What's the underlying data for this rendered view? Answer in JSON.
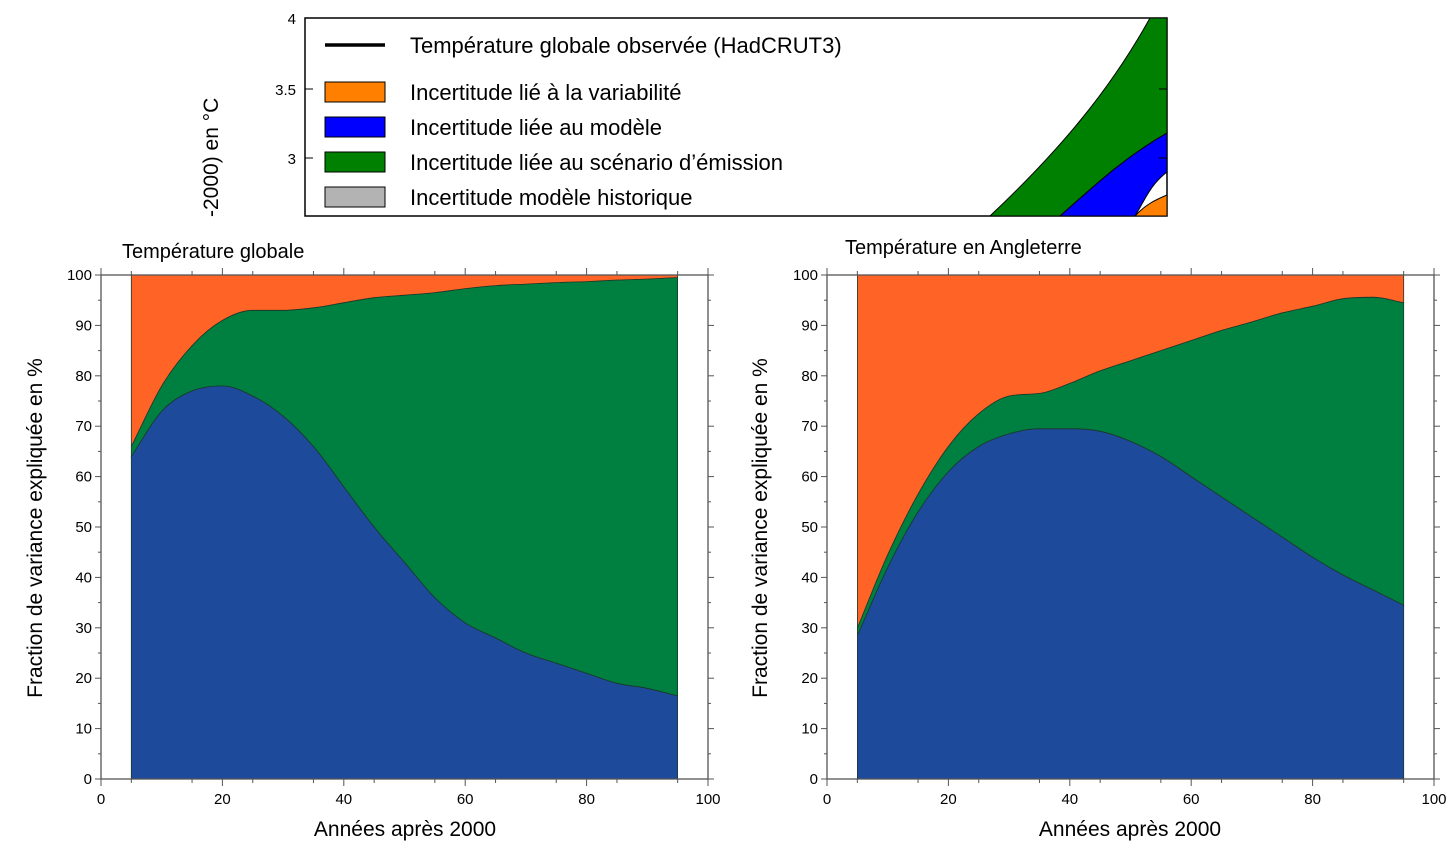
{
  "colors": {
    "variability": "#ff6325",
    "model": "#1d4a9a",
    "scenario": "#008040",
    "legend_variability": "#ff8000",
    "legend_model": "#0000ff",
    "legend_scenario": "#008000",
    "legend_historic": "#b3b3b3"
  },
  "top_panel": {
    "ylabel_fragment": "-2000) en °C",
    "yticks": [
      "3",
      "3.5",
      "4"
    ],
    "legend": [
      {
        "key": "observed",
        "label": "Température globale observée (HadCRUT3)"
      },
      {
        "key": "variability",
        "label": "Incertitude lié à la variabilité"
      },
      {
        "key": "model",
        "label": "Incertitude liée au modèle"
      },
      {
        "key": "scenario",
        "label": "Incertitude liée au scénario d’émission"
      },
      {
        "key": "historic",
        "label": "Incertitude modèle historique"
      }
    ]
  },
  "chart_data": [
    {
      "type": "area",
      "title": "Température globale",
      "xlabel": "Années après 2000",
      "ylabel": "Fraction de variance expliquée en %",
      "xlim": [
        0,
        100
      ],
      "ylim": [
        0,
        100
      ],
      "xticks": [
        "0",
        "20",
        "40",
        "60",
        "80",
        "100"
      ],
      "yticks": [
        "0",
        "10",
        "20",
        "30",
        "40",
        "50",
        "60",
        "70",
        "80",
        "90",
        "100"
      ],
      "stacked": true,
      "x": [
        5,
        10,
        15,
        20,
        25,
        30,
        35,
        40,
        45,
        50,
        55,
        60,
        65,
        70,
        75,
        80,
        85,
        90,
        95
      ],
      "series": [
        {
          "name": "Incertitude liée au modèle",
          "color_key": "model",
          "values": [
            64,
            73,
            77,
            78,
            76,
            72,
            66,
            58,
            50,
            43,
            36,
            31,
            28,
            25,
            23,
            21,
            19,
            18,
            16.5
          ]
        },
        {
          "name": "Incertitude liée au scénario d’émission",
          "color_key": "scenario",
          "values": [
            2,
            5,
            9,
            13,
            17,
            21,
            27.5,
            36.5,
            45.5,
            53,
            60.5,
            66.3,
            69.9,
            73.2,
            75.5,
            77.7,
            80,
            81.2,
            83
          ]
        },
        {
          "name": "Incertitude lié à la variabilité",
          "color_key": "variability",
          "values": [
            34,
            22,
            14,
            9,
            7,
            7,
            6.5,
            5.5,
            4.5,
            4,
            3.5,
            2.7,
            2.1,
            1.8,
            1.5,
            1.3,
            1,
            0.8,
            0.5
          ]
        }
      ]
    },
    {
      "type": "area",
      "title": "Température en Angleterre",
      "xlabel": "Années après 2000",
      "ylabel": "Fraction de variance expliquée en %",
      "xlim": [
        0,
        100
      ],
      "ylim": [
        0,
        100
      ],
      "xticks": [
        "0",
        "20",
        "40",
        "60",
        "80",
        "100"
      ],
      "yticks": [
        "0",
        "10",
        "20",
        "30",
        "40",
        "50",
        "60",
        "70",
        "80",
        "90",
        "100"
      ],
      "stacked": true,
      "x": [
        5,
        10,
        15,
        20,
        25,
        30,
        35,
        40,
        45,
        50,
        55,
        60,
        65,
        70,
        75,
        80,
        85,
        90,
        95
      ],
      "series": [
        {
          "name": "Incertitude liée au modèle",
          "color_key": "model",
          "values": [
            28.5,
            42,
            53,
            61,
            66,
            68.5,
            69.5,
            69.5,
            69,
            67,
            64,
            60,
            56,
            52,
            48,
            44,
            40.5,
            37.5,
            34.5
          ]
        },
        {
          "name": "Incertitude liée au scénario d’émission",
          "color_key": "scenario",
          "values": [
            1.5,
            2.5,
            3.5,
            5,
            6.5,
            7.5,
            7,
            9,
            12,
            16,
            21,
            27,
            33,
            38.7,
            44.5,
            49.8,
            54.8,
            58.1,
            60
          ]
        },
        {
          "name": "Incertitude lié à la variabilité",
          "color_key": "variability",
          "values": [
            70,
            55.5,
            43.5,
            34,
            27.5,
            24,
            23.5,
            21.5,
            19,
            17,
            15,
            13,
            11,
            9.3,
            7.5,
            6.2,
            4.7,
            4.4,
            5.5
          ]
        }
      ]
    }
  ]
}
